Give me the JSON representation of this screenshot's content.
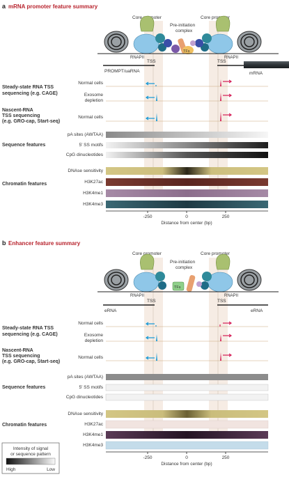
{
  "panel_a": {
    "letter": "a",
    "title": "mRNA promoter feature summary",
    "core_left": "Core promoter",
    "core_right": "Core promoter",
    "pic_line1": "Pre-initiation",
    "pic_line2": "complex",
    "rnapii_left": "RNAPII",
    "rnapii_right": "RNAPII",
    "tfs": "TFs",
    "tss_left": "TSS",
    "tss_right": "TSS",
    "prompt": "PROMPT/uaRNA",
    "mrna": "mRNA",
    "ss_line1": "Steady-state RNA TSS",
    "ss_line2": "sequencing (e.g. CAGE)",
    "normal1": "Normal cells",
    "exo1": "Exosome",
    "exo2": "depletion",
    "nascent1": "Nascent-RNA",
    "nascent2": "TSS sequencing",
    "nascent3": "(e.g. GRO-cap, Start-seq)",
    "normal2": "Normal cells",
    "seq_features": "Sequence features",
    "pa_sites": "pA sites (AWTAA)",
    "ss_motifs": "5′ SS motifs",
    "cpg": "CpG dinucleotides",
    "dnase": "DNAse sensitivity",
    "h3k27ac": "H3K27ac",
    "h3k4me1": "H3K4me1",
    "h3k4me3": "H3K4me3",
    "chromatin": "Chromatin features",
    "tick_m250": "-250",
    "tick_0": "0",
    "tick_250": "250",
    "axis_label": "Distance from center (bp)"
  },
  "panel_b": {
    "letter": "b",
    "title": "Enhancer feature summary",
    "core_left": "Core promoter",
    "core_right": "Core promoter",
    "pic_line1": "Pre-initiation",
    "pic_line2": "complex",
    "rnapii_left": "RNAPII",
    "rnapii_right": "RNAPII",
    "tfs": "TFs",
    "tss_left": "TSS",
    "tss_right": "TSS",
    "erna_left": "eRNA",
    "erna_right": "eRNA",
    "ss_line1": "Steady-state RNA TSS",
    "ss_line2": "sequencing (e.g. CAGE)",
    "normal1": "Normal cells",
    "exo1": "Exosome",
    "exo2": "depletion",
    "nascent1": "Nascent-RNA",
    "nascent2": "TSS sequencing",
    "nascent3": "(e.g. GRO-cap, Start-seq)",
    "normal2": "Normal cells",
    "seq_features": "Sequence features",
    "pa_sites": "pA sites (AWTAA)",
    "ss_motifs": "5′ SS motifs",
    "cpg": "CpG dinucleotides",
    "dnase": "DNAse sensitivity",
    "h3k27ac": "H3K27ac",
    "h3k4me1": "H3K4me1",
    "h3k4me3": "H3K4me3",
    "chromatin": "Chromatin features",
    "tick_m250": "-250",
    "tick_0": "0",
    "tick_250": "250",
    "axis_label": "Distance from center (bp)"
  },
  "legend": {
    "title1": "Intensity of signal",
    "title2": "or sequence pattern",
    "high": "High",
    "low": "Low"
  },
  "colors": {
    "title_red": "#b8242e",
    "cyan_arrow": "#1a9ad6",
    "red_arrow": "#d6245a",
    "region_tint": "#f6ece4",
    "dnase": "#cdbf7e",
    "h3k27ac": "#6a2e28",
    "h3k4me1": "#9a7a9a",
    "h3k4me3": "#2f5a66"
  }
}
